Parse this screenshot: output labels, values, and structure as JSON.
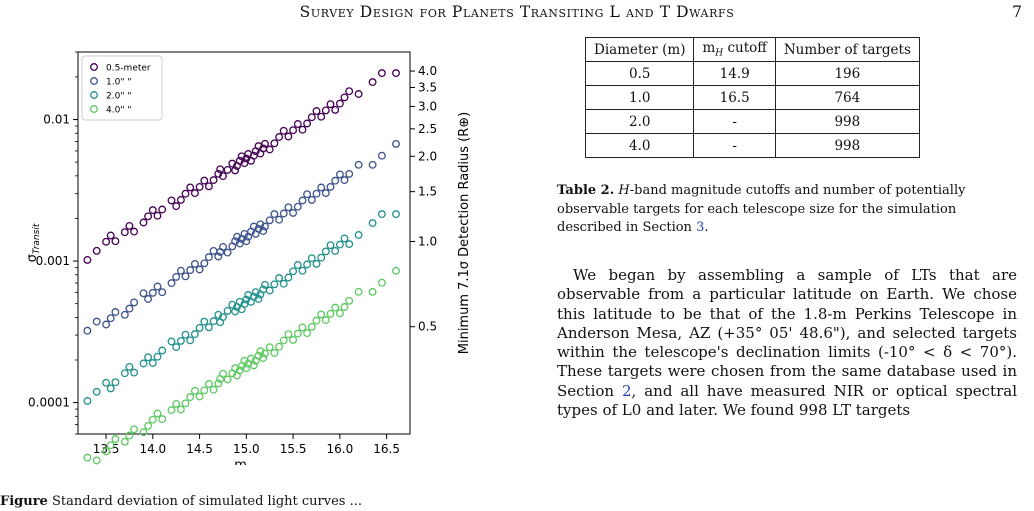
{
  "header": {
    "running_title": "Survey Design for Planets Transiting L and T Dwarfs",
    "page_number": "7"
  },
  "figure": {
    "caption_label": "Figure",
    "caption_text": "Standard deviation of simulated light curves ...",
    "chart_data": {
      "type": "scatter",
      "xlabel": "m_H",
      "ylabel": "σ_Transit",
      "y2label": "Minimum 7.1σ Detection Radius (R⊕)",
      "xlim": [
        13.2,
        16.75
      ],
      "ylim": [
        6e-05,
        0.03
      ],
      "y_scale": "log",
      "grid": false,
      "legend_placement": "top-left",
      "x_ticks": [
        "13.5",
        "14.0",
        "14.5",
        "15.0",
        "15.5",
        "16.0",
        "16.5"
      ],
      "y_ticks": [
        "0.0001",
        "0.001",
        "0.01"
      ],
      "y2_ticks": [
        "0.5",
        "1.0",
        "1.5",
        "2.0",
        "2.5",
        "3.0",
        "3.5",
        "4.0"
      ],
      "series": [
        {
          "name": "0.5-meter",
          "color": "#440154",
          "sigma_at_mH15": 0.0053,
          "slope_per_mag": 0.4,
          "x": [
            13.3,
            13.4,
            13.5,
            13.55,
            13.6,
            13.7,
            13.75,
            13.8,
            13.9,
            13.95,
            14.0,
            14.05,
            14.1,
            14.2,
            14.25,
            14.3,
            14.35,
            14.4,
            14.45,
            14.5,
            14.55,
            14.6,
            14.65,
            14.7,
            14.72,
            14.75,
            14.8,
            14.85,
            14.88,
            14.9,
            14.93,
            14.95,
            14.98,
            15.0,
            15.02,
            15.05,
            15.08,
            15.1,
            15.13,
            15.15,
            15.18,
            15.2,
            15.25,
            15.3,
            15.35,
            15.4,
            15.45,
            15.5,
            15.55,
            15.6,
            15.65,
            15.7,
            15.75,
            15.8,
            15.85,
            15.9,
            15.95,
            16.0,
            16.05,
            16.1,
            16.2,
            16.35,
            16.45,
            16.6
          ]
        },
        {
          "name": "1.0\" \"",
          "color": "#3b528b",
          "sigma_at_mH15": 0.0015,
          "slope_per_mag": 0.4,
          "x": [
            13.3,
            13.4,
            13.5,
            13.55,
            13.6,
            13.7,
            13.75,
            13.8,
            13.9,
            13.95,
            14.0,
            14.05,
            14.1,
            14.2,
            14.25,
            14.3,
            14.35,
            14.4,
            14.45,
            14.5,
            14.55,
            14.6,
            14.65,
            14.7,
            14.72,
            14.75,
            14.8,
            14.85,
            14.88,
            14.9,
            14.93,
            14.95,
            14.98,
            15.0,
            15.02,
            15.05,
            15.08,
            15.1,
            15.13,
            15.15,
            15.18,
            15.2,
            15.25,
            15.3,
            15.35,
            15.4,
            15.45,
            15.5,
            15.55,
            15.6,
            15.65,
            15.7,
            15.75,
            15.8,
            15.85,
            15.9,
            15.95,
            16.0,
            16.05,
            16.1,
            16.2,
            16.35,
            16.45,
            16.6
          ]
        },
        {
          "name": "2.0\" \"",
          "color": "#21918c",
          "sigma_at_mH15": 0.00052,
          "slope_per_mag": 0.4,
          "x": [
            13.3,
            13.4,
            13.5,
            13.55,
            13.6,
            13.7,
            13.75,
            13.8,
            13.9,
            13.95,
            14.0,
            14.05,
            14.1,
            14.2,
            14.25,
            14.3,
            14.35,
            14.4,
            14.45,
            14.5,
            14.55,
            14.6,
            14.65,
            14.7,
            14.72,
            14.75,
            14.8,
            14.85,
            14.88,
            14.9,
            14.93,
            14.95,
            14.98,
            15.0,
            15.02,
            15.05,
            15.08,
            15.1,
            15.13,
            15.15,
            15.18,
            15.2,
            15.25,
            15.3,
            15.35,
            15.4,
            15.45,
            15.5,
            15.55,
            15.6,
            15.65,
            15.7,
            15.75,
            15.8,
            15.85,
            15.9,
            15.95,
            16.0,
            16.05,
            16.1,
            16.2,
            16.35,
            16.45,
            16.6
          ]
        },
        {
          "name": "4.0\" \"",
          "color": "#5ec962",
          "sigma_at_mH15": 0.000185,
          "slope_per_mag": 0.4,
          "x": [
            13.3,
            13.4,
            13.5,
            13.55,
            13.6,
            13.7,
            13.75,
            13.8,
            13.9,
            13.95,
            14.0,
            14.05,
            14.1,
            14.2,
            14.25,
            14.3,
            14.35,
            14.4,
            14.45,
            14.5,
            14.55,
            14.6,
            14.65,
            14.7,
            14.72,
            14.75,
            14.8,
            14.85,
            14.88,
            14.9,
            14.93,
            14.95,
            14.98,
            15.0,
            15.02,
            15.05,
            15.08,
            15.1,
            15.13,
            15.15,
            15.18,
            15.2,
            15.25,
            15.3,
            15.35,
            15.4,
            15.45,
            15.5,
            15.55,
            15.6,
            15.65,
            15.7,
            15.75,
            15.8,
            15.85,
            15.9,
            15.95,
            16.0,
            16.05,
            16.1,
            16.2,
            16.35,
            16.45,
            16.6
          ]
        }
      ]
    }
  },
  "table": {
    "headers": [
      "Diameter (m)",
      "m_H cutoff",
      "Number of targets"
    ],
    "rows": [
      [
        "0.5",
        "14.9",
        "196"
      ],
      [
        "1.0",
        "16.5",
        "764"
      ],
      [
        "2.0",
        "-",
        "998"
      ],
      [
        "4.0",
        "-",
        "998"
      ]
    ],
    "caption_label": "Table 2.",
    "caption_h": "H",
    "caption_text": "-band magnitude cutoffs and number of potentially observable targets for each telescope size for the simulation described in Section",
    "caption_ref": "3",
    "caption_end": "."
  },
  "body": {
    "t1": "We began by assembling a sample of LTs that are observable from a particular latitude on Earth. We chose this latitude to be that of the 1.8-m Perkins Telescope in Anderson Mesa, AZ (+35° 05' 48.6\"), and selected targets within the telescope's declination limits (-10° < δ < 70°). These targets were chosen from the same database used in Section",
    "ref": "2",
    "t2": ", and all have measured NIR or optical spectral types of L0 and later. We found 998 LT targets"
  }
}
